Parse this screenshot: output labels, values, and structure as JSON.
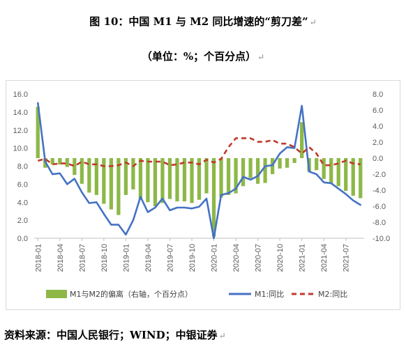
{
  "header": {
    "title": "图 10：中国 M1 与 M2 同比增速的“剪刀差”",
    "subtitle": "（单位：%；个百分点）",
    "para_mark": "↵"
  },
  "source_note": "资料来源：中国人民银行；WIND；中银证券",
  "chart_data": {
    "type": "bar+line",
    "x_tick_labels": [
      "2018-01",
      "2018-04",
      "2018-07",
      "2018-10",
      "2019-01",
      "2019-04",
      "2019-07",
      "2019-10",
      "2020-01",
      "2020-04",
      "2020-07",
      "2020-10",
      "2021-01",
      "2021-04",
      "2021-07"
    ],
    "x_tick_every": 3,
    "left_axis": {
      "min": 0,
      "max": 16,
      "step": 2,
      "ticks": [
        "0.0",
        "2.0",
        "4.0",
        "6.0",
        "8.0",
        "10.0",
        "12.0",
        "14.0",
        "16.0"
      ]
    },
    "right_axis": {
      "min": -10,
      "max": 8,
      "step": 2,
      "ticks": [
        "-10.0",
        "-8.0",
        "-6.0",
        "-4.0",
        "-2.0",
        "0.0",
        "2.0",
        "4.0",
        "6.0",
        "8.0"
      ]
    },
    "series": [
      {
        "name": "M1与M2的偏离（右轴，个百分点）",
        "kind": "bar",
        "axis": "right",
        "color": "#8db848",
        "values": [
          6.4,
          -1.2,
          -0.8,
          -0.8,
          -1.1,
          -2.1,
          -3.2,
          -4.3,
          -4.6,
          -5.7,
          -6.4,
          -7.1,
          -4.6,
          -3.9,
          -5.2,
          -5.5,
          -6.0,
          -5.6,
          -5.1,
          -5.4,
          -5.4,
          -5.6,
          -5.2,
          -4.4,
          -9.8,
          -4.9,
          -4.6,
          -4.4,
          -3.5,
          -2.5,
          -3.2,
          -3.1,
          -2.0,
          -1.3,
          -1.2,
          -0.6,
          4.5,
          -1.7,
          -1.5,
          -2.6,
          -3.2,
          -3.5,
          -4.1,
          -4.7,
          -5.0
        ]
      },
      {
        "name": "M1:同比",
        "kind": "line",
        "axis": "left",
        "color": "#4472c4",
        "values": [
          15.0,
          8.5,
          7.1,
          7.2,
          6.0,
          6.6,
          5.1,
          3.9,
          4.0,
          2.7,
          1.5,
          1.5,
          0.4,
          2.0,
          4.6,
          2.9,
          3.4,
          4.4,
          3.1,
          3.4,
          3.4,
          3.3,
          3.5,
          4.4,
          0.0,
          4.8,
          5.0,
          5.5,
          6.8,
          6.5,
          6.9,
          8.0,
          8.1,
          9.4,
          10.1,
          10.0,
          14.7,
          7.4,
          7.1,
          6.2,
          6.1,
          5.5,
          4.9,
          4.2,
          3.7
        ]
      },
      {
        "name": "M2:同比",
        "kind": "line",
        "axis": "left",
        "dashed": true,
        "color": "#c0392b",
        "values": [
          8.6,
          8.8,
          8.2,
          8.3,
          8.3,
          8.0,
          8.5,
          8.2,
          8.2,
          8.0,
          8.0,
          8.1,
          8.4,
          8.0,
          8.6,
          8.5,
          8.5,
          8.5,
          8.1,
          8.2,
          8.4,
          8.4,
          8.2,
          8.7,
          8.4,
          8.8,
          10.1,
          11.1,
          11.1,
          11.1,
          10.7,
          10.7,
          10.9,
          10.5,
          10.5,
          10.1,
          9.4,
          10.1,
          9.4,
          8.1,
          8.1,
          8.3,
          8.6,
          8.3,
          8.2
        ]
      }
    ]
  }
}
